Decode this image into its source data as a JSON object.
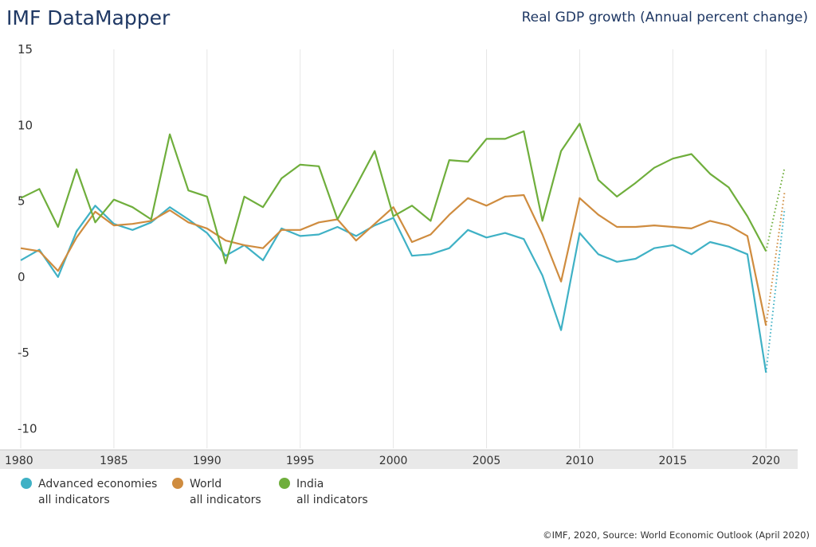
{
  "header": {
    "brand": "IMF DataMapper",
    "chart_title": "Real GDP growth (Annual percent change)"
  },
  "legend": {
    "items": [
      {
        "name": "Advanced economies",
        "sub": "all indicators",
        "color": "#3fb1c5"
      },
      {
        "name": "World",
        "sub": "all indicators",
        "color": "#cf8c3f"
      },
      {
        "name": "India",
        "sub": "all indicators",
        "color": "#6fae3c"
      }
    ]
  },
  "footer": {
    "source": "©IMF, 2020, Source: World Economic Outlook (April 2020)"
  },
  "chart_data": {
    "type": "line",
    "title": "Real GDP growth (Annual percent change)",
    "xlabel": "",
    "ylabel": "",
    "x_ticks": [
      1980,
      1985,
      1990,
      1995,
      2000,
      2005,
      2010,
      2015,
      2020
    ],
    "x_tick_labels": [
      "1980",
      "1985",
      "1990",
      "1995",
      "2000",
      "2005",
      "2010",
      "2015",
      "2020"
    ],
    "y_ticks": [
      15,
      10,
      5,
      0,
      -5,
      -10
    ],
    "y_tick_labels": [
      "15",
      "10",
      "5",
      "0",
      "-5",
      "-10"
    ],
    "xlim": [
      1980,
      2021.7
    ],
    "ylim": [
      -10.5,
      15
    ],
    "grid": "vertical",
    "legend_position": "bottom-left",
    "x": [
      1980,
      1981,
      1982,
      1983,
      1984,
      1985,
      1986,
      1987,
      1988,
      1989,
      1990,
      1991,
      1992,
      1993,
      1994,
      1995,
      1996,
      1997,
      1998,
      1999,
      2000,
      2001,
      2002,
      2003,
      2004,
      2005,
      2006,
      2007,
      2008,
      2009,
      2010,
      2011,
      2012,
      2013,
      2014,
      2015,
      2016,
      2017,
      2018,
      2019,
      2020
    ],
    "projection_x": [
      2020,
      2021
    ],
    "series": [
      {
        "name": "Advanced economies",
        "color": "#3fb1c5",
        "values": [
          1.1,
          1.8,
          0.0,
          3.0,
          4.7,
          3.5,
          3.1,
          3.6,
          4.6,
          3.8,
          2.9,
          1.4,
          2.1,
          1.1,
          3.2,
          2.7,
          2.8,
          3.3,
          2.7,
          3.4,
          3.9,
          1.4,
          1.5,
          1.9,
          3.1,
          2.6,
          2.9,
          2.5,
          0.1,
          -3.5,
          2.9,
          1.5,
          1.0,
          1.2,
          1.9,
          2.1,
          1.5,
          2.3,
          2.0,
          1.5,
          -6.3
        ],
        "projection": [
          -6.3,
          4.5
        ]
      },
      {
        "name": "World",
        "color": "#cf8c3f",
        "values": [
          1.9,
          1.7,
          0.4,
          2.6,
          4.3,
          3.4,
          3.5,
          3.7,
          4.4,
          3.6,
          3.2,
          2.4,
          2.1,
          1.9,
          3.1,
          3.1,
          3.6,
          3.8,
          2.4,
          3.5,
          4.6,
          2.3,
          2.8,
          4.1,
          5.2,
          4.7,
          5.3,
          5.4,
          2.8,
          -0.3,
          5.2,
          4.1,
          3.3,
          3.3,
          3.4,
          3.3,
          3.2,
          3.7,
          3.4,
          2.7,
          -3.2
        ],
        "projection": [
          -3.2,
          5.6
        ]
      },
      {
        "name": "India",
        "color": "#6fae3c",
        "values": [
          5.2,
          5.8,
          3.3,
          7.1,
          3.6,
          5.1,
          4.6,
          3.8,
          9.4,
          5.7,
          5.3,
          0.9,
          5.3,
          4.6,
          6.5,
          7.4,
          7.3,
          3.8,
          6.0,
          8.3,
          4.0,
          4.7,
          3.7,
          7.7,
          7.6,
          9.1,
          9.1,
          9.6,
          3.7,
          8.3,
          10.1,
          6.4,
          5.3,
          6.2,
          7.2,
          7.8,
          8.1,
          6.8,
          5.9,
          4.0,
          1.7
        ],
        "projection": [
          1.7,
          7.2
        ]
      }
    ]
  }
}
